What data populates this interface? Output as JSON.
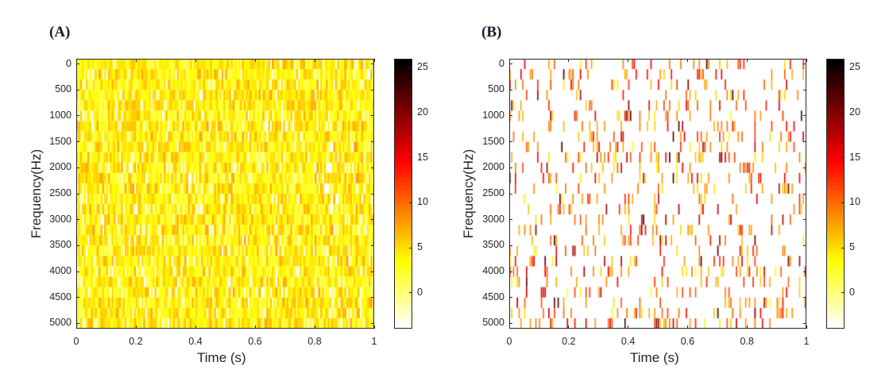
{
  "chart_data": [
    {
      "type": "heatmap",
      "panel_label": "(A)",
      "title": "",
      "xlabel": "Time (s)",
      "ylabel": "Frequency(Hz)",
      "xlim": [
        0,
        1
      ],
      "ylim": [
        -100,
        5100
      ],
      "xticks": [
        "0",
        "0.2",
        "0.4",
        "0.6",
        "0.8",
        "1"
      ],
      "xtick_values": [
        0,
        0.2,
        0.4,
        0.6,
        0.8,
        1
      ],
      "yticks": [
        "0",
        "500",
        "1000",
        "1500",
        "2000",
        "2500",
        "3000",
        "3500",
        "4000",
        "4500",
        "5000"
      ],
      "ytick_values": [
        0,
        500,
        1000,
        1500,
        2000,
        2500,
        3000,
        3500,
        4000,
        4500,
        5000
      ],
      "y_orientation": "reversed",
      "colormap": "hot (reversed)",
      "clim": [
        -4,
        26
      ],
      "colorbar_ticks": [
        "0",
        "5",
        "10",
        "15",
        "20",
        "25"
      ],
      "colorbar_tick_values": [
        0,
        5,
        10,
        15,
        20,
        25
      ],
      "grid": false,
      "freq_bins": 26,
      "freq_step_hz": 200,
      "time_bins": 160,
      "description": "Dense noise-like spectrogram; nearly all bins in range ~0 to 8 (light yellow to orange)",
      "bin_value_distribution": {
        "active_fraction": 0.92,
        "min": -1,
        "max": 8,
        "mode": 4
      },
      "random_seed": 17
    },
    {
      "type": "heatmap",
      "panel_label": "(B)",
      "title": "",
      "xlabel": "Time (s)",
      "ylabel": "Frequency(Hz)",
      "xlim": [
        0,
        1
      ],
      "ylim": [
        -100,
        5100
      ],
      "xticks": [
        "0",
        "0.2",
        "0.4",
        "0.6",
        "0.8",
        "1"
      ],
      "xtick_values": [
        0,
        0.2,
        0.4,
        0.6,
        0.8,
        1
      ],
      "yticks": [
        "0",
        "500",
        "1000",
        "1500",
        "2000",
        "2500",
        "3000",
        "3500",
        "4000",
        "4500",
        "5000"
      ],
      "ytick_values": [
        0,
        500,
        1000,
        1500,
        2000,
        2500,
        3000,
        3500,
        4000,
        4500,
        5000
      ],
      "y_orientation": "reversed",
      "colormap": "hot (reversed)",
      "clim": [
        -4,
        26
      ],
      "colorbar_ticks": [
        "0",
        "5",
        "10",
        "15",
        "20",
        "25"
      ],
      "colorbar_tick_values": [
        0,
        5,
        10,
        15,
        20,
        25
      ],
      "grid": false,
      "freq_bins": 26,
      "freq_step_hz": 200,
      "time_bins": 160,
      "description": "Sparse spectrogram; most bins at background (white), scattered bins 2 to 22 (yellow, orange, red, occasional dark red)",
      "bin_value_distribution": {
        "active_fraction": 0.16,
        "min": 2,
        "max": 22,
        "mode": 9
      },
      "random_seed": 41
    }
  ]
}
